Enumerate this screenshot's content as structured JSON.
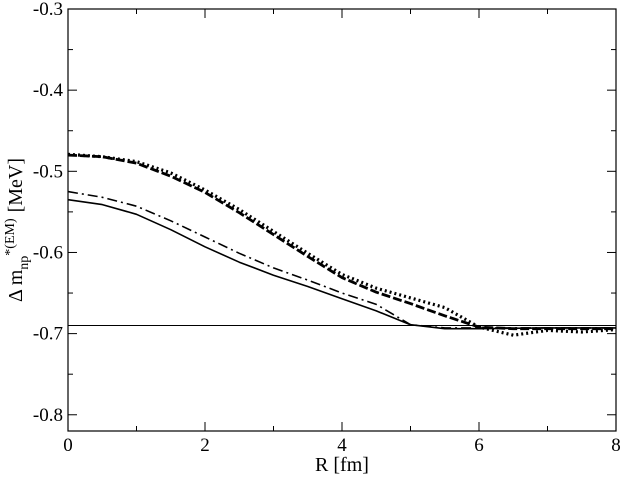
{
  "chart_data": {
    "type": "line",
    "title": "",
    "xlabel": "R [fm]",
    "ylabel": {
      "prefix": "Δ m",
      "subscript": "np",
      "superscript": "*(EM)",
      "unit": "[MeV]"
    },
    "xlim": [
      0,
      8
    ],
    "ylim": [
      -0.82,
      -0.3
    ],
    "xticks": [
      0,
      2,
      4,
      6,
      8
    ],
    "xtick_labels": [
      "0",
      "2",
      "4",
      "6",
      "8"
    ],
    "yticks": [
      -0.8,
      -0.7,
      -0.6,
      -0.5,
      -0.4,
      -0.3
    ],
    "ytick_labels": [
      "-0.8",
      "-0.7",
      "-0.6",
      "-0.5",
      "-0.4",
      "-0.3"
    ],
    "grid": false,
    "legend": "none",
    "reference_line": {
      "y": -0.69,
      "style": "thin solid"
    },
    "series": [
      {
        "style": "solid",
        "x": [
          0,
          0.5,
          1.0,
          1.5,
          2.0,
          2.5,
          3.0,
          3.5,
          4.0,
          4.5,
          5.0,
          5.5,
          6.0,
          7.0,
          8.0
        ],
        "y": [
          -0.535,
          -0.541,
          -0.553,
          -0.572,
          -0.593,
          -0.612,
          -0.628,
          -0.642,
          -0.657,
          -0.672,
          -0.689,
          -0.694,
          -0.694,
          -0.693,
          -0.693
        ]
      },
      {
        "style": "dash-dot",
        "x": [
          0,
          0.5,
          1.0,
          1.5,
          2.0,
          2.5,
          3.0,
          3.5,
          4.0,
          4.5,
          5.0,
          5.5,
          6.0,
          7.0,
          8.0
        ],
        "y": [
          -0.525,
          -0.532,
          -0.543,
          -0.561,
          -0.581,
          -0.601,
          -0.619,
          -0.634,
          -0.65,
          -0.664,
          -0.689,
          -0.693,
          -0.693,
          -0.693,
          -0.693
        ]
      },
      {
        "style": "dashed",
        "x": [
          0,
          0.5,
          1.0,
          1.5,
          2.0,
          2.5,
          3.0,
          3.5,
          4.0,
          4.5,
          5.0,
          5.5,
          6.0,
          6.5,
          7.0,
          8.0
        ],
        "y": [
          -0.48,
          -0.482,
          -0.49,
          -0.506,
          -0.526,
          -0.551,
          -0.578,
          -0.605,
          -0.631,
          -0.649,
          -0.663,
          -0.678,
          -0.692,
          -0.694,
          -0.694,
          -0.694
        ]
      },
      {
        "style": "dotted",
        "x": [
          0,
          0.5,
          1.0,
          1.5,
          2.0,
          2.5,
          3.0,
          3.5,
          4.0,
          4.5,
          5.0,
          5.5,
          6.0,
          6.5,
          7.0,
          7.5,
          8.0
        ],
        "y": [
          -0.479,
          -0.482,
          -0.488,
          -0.502,
          -0.523,
          -0.547,
          -0.574,
          -0.601,
          -0.627,
          -0.644,
          -0.656,
          -0.668,
          -0.692,
          -0.702,
          -0.696,
          -0.698,
          -0.695
        ]
      }
    ]
  }
}
